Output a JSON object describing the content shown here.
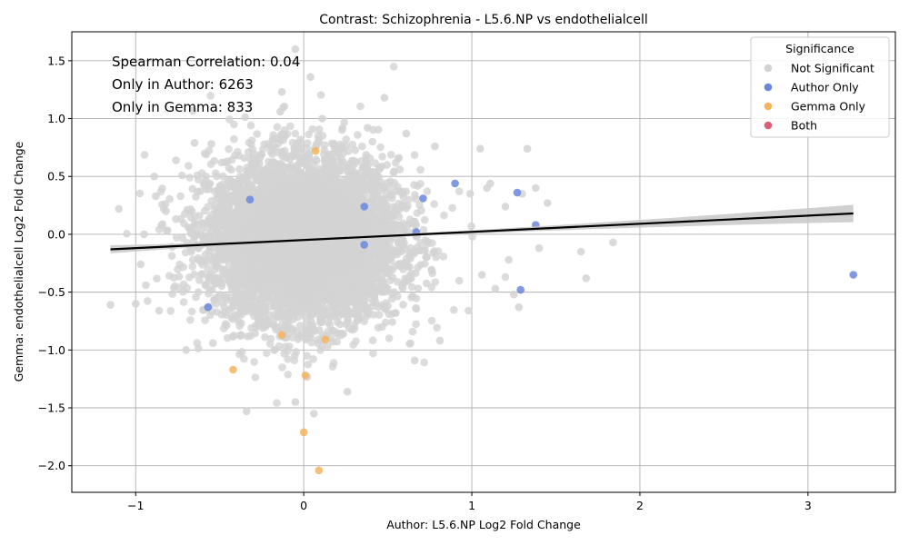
{
  "chart_data": {
    "type": "scatter",
    "title": "Contrast: Schizophrenia - L5.6.NP vs endothelialcell",
    "xlabel": "Author: L5.6.NP Log2 Fold Change",
    "ylabel": "Gemma: endothelialcell Log2 Fold Change",
    "xlim": [
      -1.38,
      3.52
    ],
    "ylim": [
      -2.23,
      1.75
    ],
    "x_ticks": [
      -1,
      0,
      1,
      2,
      3
    ],
    "x_tick_labels": [
      "−1",
      "0",
      "1",
      "2",
      "3"
    ],
    "y_ticks": [
      -2.0,
      -1.5,
      -1.0,
      -0.5,
      0.0,
      0.5,
      1.0,
      1.5
    ],
    "y_tick_labels": [
      "−2.0",
      "−1.5",
      "−1.0",
      "−0.5",
      "0.0",
      "0.5",
      "1.0",
      "1.5"
    ],
    "grid": true,
    "annotations": [
      "Spearman Correlation: 0.04",
      "Only in Author: 6263",
      "Only in Gemma: 833"
    ],
    "legend": {
      "title": "Significance",
      "placement": "top-right",
      "entries": [
        {
          "label": "Not Significant",
          "color": "#d3d3d3"
        },
        {
          "label": "Author Only",
          "color": "#6b86dd"
        },
        {
          "label": "Gemma Only",
          "color": "#f6b35f"
        },
        {
          "label": "Both",
          "color": "#dc5f78"
        }
      ]
    },
    "regression": {
      "x": [
        -1.15,
        3.27
      ],
      "y": [
        -0.13,
        0.18
      ],
      "ci_halfwidth_left": 0.035,
      "ci_halfwidth_mid": 0.01,
      "ci_halfwidth_right": 0.075,
      "color": "#000000",
      "band_color": "#c8c8c8"
    },
    "series": [
      {
        "name": "Not Significant",
        "color": "#d3d3d3",
        "cloud": {
          "n_points": 6000,
          "center_x": 0.0,
          "center_y": -0.05,
          "sd_x": 0.28,
          "sd_y": 0.35
        },
        "points": [
          {
            "x": -1.15,
            "y": -0.61
          },
          {
            "x": -1.1,
            "y": 0.22
          },
          {
            "x": -1.0,
            "y": -0.6
          },
          {
            "x": -0.97,
            "y": -0.26
          },
          {
            "x": -0.95,
            "y": 0.0
          },
          {
            "x": -0.94,
            "y": -0.44
          },
          {
            "x": -0.89,
            "y": 0.5
          },
          {
            "x": -0.88,
            "y": 0.33
          },
          {
            "x": -0.86,
            "y": -0.66
          },
          {
            "x": -0.82,
            "y": 0.2
          },
          {
            "x": -0.76,
            "y": 0.64
          },
          {
            "x": -0.7,
            "y": -1.0
          },
          {
            "x": -0.65,
            "y": 0.79
          },
          {
            "x": -0.55,
            "y": 0.78
          },
          {
            "x": -0.54,
            "y": -0.94
          },
          {
            "x": -0.34,
            "y": -1.53
          },
          {
            "x": -0.14,
            "y": 1.06
          },
          {
            "x": -0.13,
            "y": 1.23
          },
          {
            "x": 0.04,
            "y": 1.36
          },
          {
            "x": -0.05,
            "y": 1.6
          },
          {
            "x": 0.11,
            "y": 1.0
          },
          {
            "x": 0.38,
            "y": 0.92
          },
          {
            "x": 0.48,
            "y": 1.18
          },
          {
            "x": 0.61,
            "y": 0.87
          },
          {
            "x": 0.66,
            "y": -1.09
          },
          {
            "x": 0.26,
            "y": -1.36
          },
          {
            "x": 0.06,
            "y": -1.55
          },
          {
            "x": -0.05,
            "y": -1.45
          },
          {
            "x": 0.78,
            "y": 0.76
          },
          {
            "x": 0.81,
            "y": -0.92
          },
          {
            "x": 0.98,
            "y": -0.66
          },
          {
            "x": 0.99,
            "y": 0.35
          },
          {
            "x": 1.05,
            "y": 0.74
          },
          {
            "x": 1.06,
            "y": -0.35
          },
          {
            "x": 1.09,
            "y": 0.4
          },
          {
            "x": 1.11,
            "y": 0.44
          },
          {
            "x": 1.14,
            "y": -0.47
          },
          {
            "x": 1.2,
            "y": 0.24
          },
          {
            "x": 1.22,
            "y": -0.22
          },
          {
            "x": 1.25,
            "y": -0.52
          },
          {
            "x": 1.28,
            "y": -0.63
          },
          {
            "x": 1.3,
            "y": 0.35
          },
          {
            "x": 1.33,
            "y": 0.74
          },
          {
            "x": 1.38,
            "y": 0.4
          },
          {
            "x": 1.4,
            "y": -0.12
          },
          {
            "x": 1.45,
            "y": 0.27
          },
          {
            "x": 1.65,
            "y": -0.15
          },
          {
            "x": 1.68,
            "y": -0.38
          },
          {
            "x": 1.84,
            "y": -0.07
          }
        ]
      },
      {
        "name": "Author Only",
        "color": "#6b86dd",
        "points": [
          {
            "x": -0.57,
            "y": -0.63
          },
          {
            "x": -0.32,
            "y": 0.3
          },
          {
            "x": 0.36,
            "y": 0.24
          },
          {
            "x": 0.36,
            "y": -0.09
          },
          {
            "x": 0.67,
            "y": 0.02
          },
          {
            "x": 0.71,
            "y": 0.31
          },
          {
            "x": 0.9,
            "y": 0.44
          },
          {
            "x": 1.27,
            "y": 0.36
          },
          {
            "x": 1.29,
            "y": -0.48
          },
          {
            "x": 1.38,
            "y": 0.08
          },
          {
            "x": 3.27,
            "y": -0.35
          }
        ]
      },
      {
        "name": "Gemma Only",
        "color": "#f6b35f",
        "points": [
          {
            "x": 0.07,
            "y": 0.72
          },
          {
            "x": -0.13,
            "y": -0.87
          },
          {
            "x": 0.13,
            "y": -0.91
          },
          {
            "x": -0.42,
            "y": -1.17
          },
          {
            "x": 0.01,
            "y": -1.22
          },
          {
            "x": 0.0,
            "y": -1.71
          },
          {
            "x": 0.09,
            "y": -2.04
          }
        ]
      },
      {
        "name": "Both",
        "color": "#dc5f78",
        "points": []
      }
    ]
  }
}
